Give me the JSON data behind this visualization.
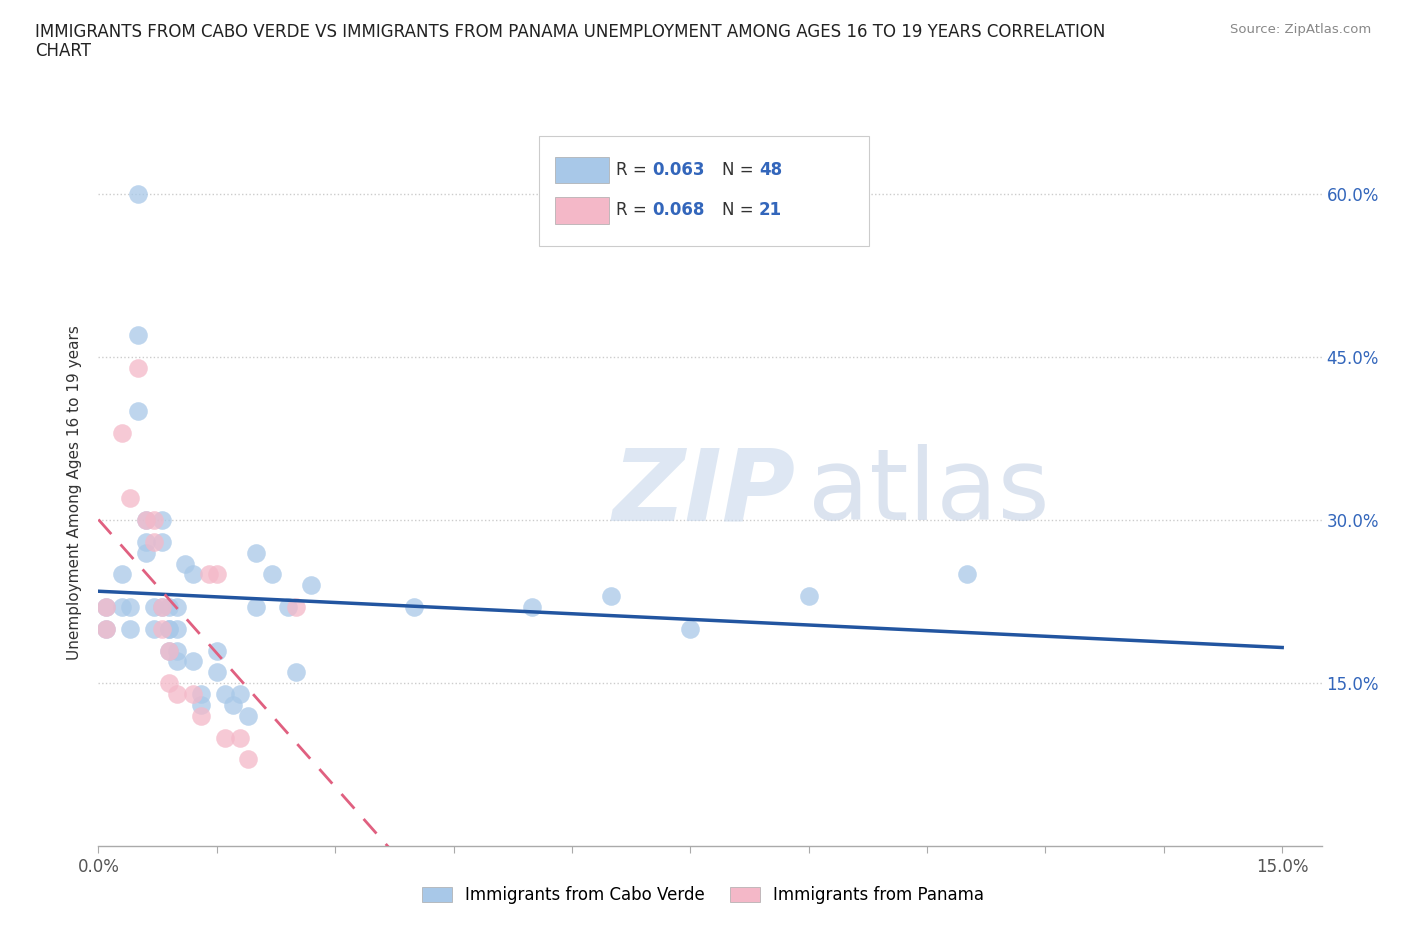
{
  "title_line1": "IMMIGRANTS FROM CABO VERDE VS IMMIGRANTS FROM PANAMA UNEMPLOYMENT AMONG AGES 16 TO 19 YEARS CORRELATION",
  "title_line2": "CHART",
  "source": "Source: ZipAtlas.com",
  "ylabel": "Unemployment Among Ages 16 to 19 years",
  "xlim": [
    0.0,
    0.155
  ],
  "ylim": [
    0.0,
    0.65
  ],
  "cabo_verde_color": "#a8c8e8",
  "panama_color": "#f4b8c8",
  "cabo_verde_line_color": "#2255a0",
  "panama_line_color": "#e06080",
  "watermark_zip": "ZIP",
  "watermark_atlas": "atlas",
  "cabo_verde_x": [
    0.001,
    0.001,
    0.003,
    0.003,
    0.004,
    0.004,
    0.005,
    0.005,
    0.005,
    0.006,
    0.006,
    0.006,
    0.007,
    0.007,
    0.008,
    0.008,
    0.008,
    0.009,
    0.009,
    0.009,
    0.009,
    0.01,
    0.01,
    0.01,
    0.01,
    0.011,
    0.012,
    0.012,
    0.013,
    0.013,
    0.015,
    0.015,
    0.016,
    0.017,
    0.018,
    0.019,
    0.02,
    0.02,
    0.022,
    0.024,
    0.025,
    0.027,
    0.04,
    0.055,
    0.065,
    0.075,
    0.09,
    0.11
  ],
  "cabo_verde_y": [
    0.22,
    0.2,
    0.25,
    0.22,
    0.2,
    0.22,
    0.6,
    0.47,
    0.4,
    0.3,
    0.28,
    0.27,
    0.22,
    0.2,
    0.3,
    0.28,
    0.22,
    0.22,
    0.2,
    0.2,
    0.18,
    0.22,
    0.2,
    0.18,
    0.17,
    0.26,
    0.25,
    0.17,
    0.14,
    0.13,
    0.18,
    0.16,
    0.14,
    0.13,
    0.14,
    0.12,
    0.27,
    0.22,
    0.25,
    0.22,
    0.16,
    0.24,
    0.22,
    0.22,
    0.23,
    0.2,
    0.23,
    0.25
  ],
  "panama_x": [
    0.001,
    0.001,
    0.003,
    0.004,
    0.005,
    0.006,
    0.007,
    0.007,
    0.008,
    0.008,
    0.009,
    0.009,
    0.01,
    0.012,
    0.013,
    0.014,
    0.015,
    0.016,
    0.018,
    0.019,
    0.025
  ],
  "panama_y": [
    0.22,
    0.2,
    0.38,
    0.32,
    0.44,
    0.3,
    0.3,
    0.28,
    0.22,
    0.2,
    0.18,
    0.15,
    0.14,
    0.14,
    0.12,
    0.25,
    0.25,
    0.1,
    0.1,
    0.08,
    0.22
  ]
}
